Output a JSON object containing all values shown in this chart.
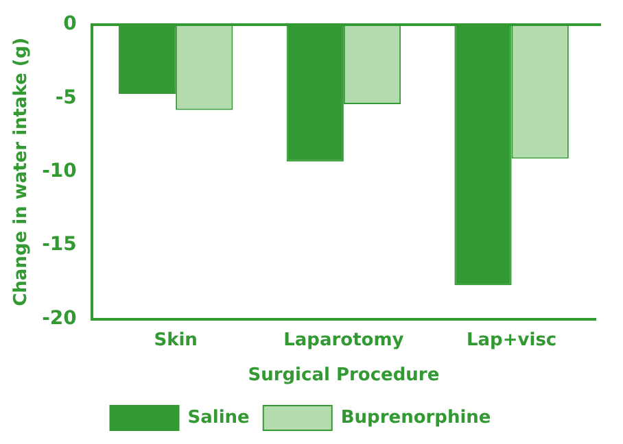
{
  "chart_data": {
    "type": "bar",
    "xlabel": "Surgical Procedure",
    "ylabel": "Change in water intake (g)",
    "categories": [
      "Skin",
      "Laparotomy",
      "Lap+visc"
    ],
    "series": [
      {
        "name": "Saline",
        "color": "#339933",
        "values": [
          -4.7,
          -9.3,
          -17.7
        ]
      },
      {
        "name": "Buprenorphine",
        "color": "#b5dcae",
        "values": [
          -5.8,
          -5.4,
          -9.1
        ]
      }
    ],
    "ylim": [
      -20,
      0
    ],
    "yticks": [
      -20,
      -15,
      -10,
      -5,
      0
    ],
    "grid": false,
    "legend": "bottom"
  }
}
